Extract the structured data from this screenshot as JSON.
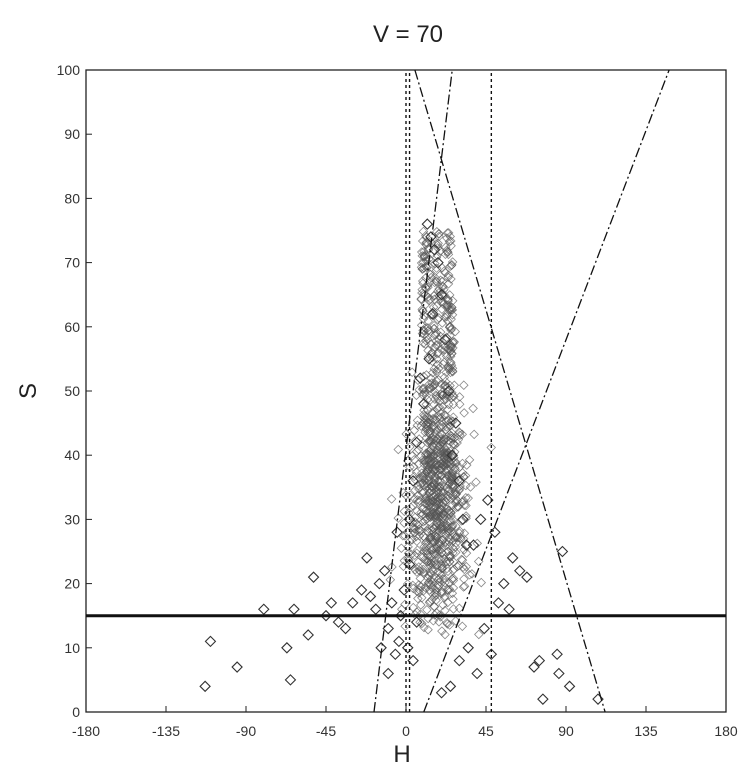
{
  "chart_data": {
    "type": "scatter",
    "title": "V = 70",
    "xlabel": "H",
    "ylabel": "S",
    "xlim": [
      -180,
      180
    ],
    "ylim": [
      0,
      100
    ],
    "x_ticks": [
      -180,
      -135,
      -90,
      -45,
      0,
      45,
      90,
      135,
      180
    ],
    "y_ticks": [
      0,
      10,
      20,
      30,
      40,
      50,
      60,
      70,
      80,
      90,
      100
    ],
    "x_tick_labels": [
      "-180",
      "-135",
      "-90",
      "-45",
      "0",
      "45",
      "90",
      "135",
      "180"
    ],
    "y_tick_labels": [
      "0",
      "10",
      "20",
      "30",
      "40",
      "50",
      "60",
      "70",
      "80",
      "90",
      "100"
    ],
    "grid": false,
    "marker": "diamond-open",
    "marker_color": "#333333",
    "scatter_points": [
      [
        -113,
        4
      ],
      [
        -110,
        11
      ],
      [
        -95,
        7
      ],
      [
        -80,
        16
      ],
      [
        -67,
        10
      ],
      [
        -65,
        5
      ],
      [
        -63,
        16
      ],
      [
        -55,
        12
      ],
      [
        -52,
        21
      ],
      [
        -45,
        15
      ],
      [
        -42,
        17
      ],
      [
        -38,
        14
      ],
      [
        -34,
        13
      ],
      [
        -30,
        17
      ],
      [
        -25,
        19
      ],
      [
        -22,
        24
      ],
      [
        -20,
        18
      ],
      [
        -17,
        16
      ],
      [
        -15,
        20
      ],
      [
        -14,
        10
      ],
      [
        -12,
        22
      ],
      [
        -10,
        13
      ],
      [
        -8,
        17
      ],
      [
        -6,
        9
      ],
      [
        -5,
        28
      ],
      [
        -3,
        15
      ],
      [
        -1,
        19
      ],
      [
        1,
        10
      ],
      [
        2,
        23
      ],
      [
        4,
        8
      ],
      [
        6,
        14
      ],
      [
        -10,
        6
      ],
      [
        -4,
        11
      ],
      [
        48,
        9
      ],
      [
        52,
        17
      ],
      [
        58,
        16
      ],
      [
        60,
        24
      ],
      [
        64,
        22
      ],
      [
        68,
        21
      ],
      [
        72,
        7
      ],
      [
        75,
        8
      ],
      [
        77,
        2
      ],
      [
        85,
        9
      ],
      [
        86,
        6
      ],
      [
        88,
        25
      ],
      [
        92,
        4
      ],
      [
        108,
        2
      ],
      [
        35,
        10
      ],
      [
        40,
        6
      ],
      [
        44,
        13
      ],
      [
        30,
        8
      ],
      [
        25,
        4
      ],
      [
        20,
        3
      ],
      [
        38,
        26
      ],
      [
        42,
        30
      ],
      [
        46,
        33
      ],
      [
        50,
        28
      ],
      [
        55,
        20
      ],
      [
        12,
        76
      ],
      [
        14,
        74
      ],
      [
        16,
        72
      ],
      [
        18,
        70
      ],
      [
        20,
        65
      ],
      [
        15,
        62
      ],
      [
        22,
        58
      ],
      [
        13,
        55
      ],
      [
        24,
        50
      ],
      [
        28,
        45
      ],
      [
        10,
        48
      ],
      [
        8,
        52
      ],
      [
        26,
        40
      ],
      [
        30,
        36
      ],
      [
        6,
        42
      ],
      [
        32,
        30
      ],
      [
        4,
        36
      ],
      [
        34,
        26
      ],
      [
        2,
        30
      ]
    ],
    "density_cloud": {
      "description_free": true,
      "h_center": 17,
      "h_spread": 11,
      "s_center": 30,
      "s_spread": 9,
      "count": 1100
    },
    "reference_lines": [
      {
        "style": "solid-thick",
        "points": [
          [
            -180,
            15
          ],
          [
            180,
            15
          ]
        ]
      },
      {
        "style": "dashed",
        "points": [
          [
            0,
            0
          ],
          [
            0,
            100
          ]
        ]
      },
      {
        "style": "dashed",
        "points": [
          [
            48,
            0
          ],
          [
            48,
            100
          ]
        ]
      },
      {
        "style": "dashed",
        "points": [
          [
            2,
            0
          ],
          [
            2,
            100
          ]
        ]
      },
      {
        "style": "dash-dot",
        "points": [
          [
            5,
            100
          ],
          [
            112,
            0
          ]
        ]
      },
      {
        "style": "dash-dot",
        "points": [
          [
            -18,
            0
          ],
          [
            26,
            100
          ]
        ]
      },
      {
        "style": "dash-dot",
        "points": [
          [
            10,
            0
          ],
          [
            148,
            100
          ]
        ]
      }
    ]
  }
}
